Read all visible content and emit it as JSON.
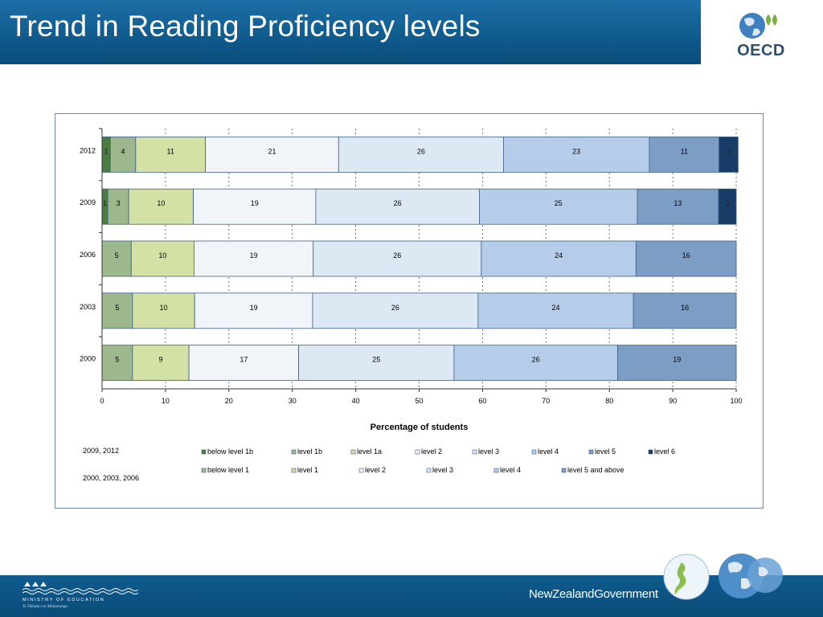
{
  "header": {
    "title": "Trend in Reading Proficiency levels",
    "logo_text": "OECD"
  },
  "footer": {
    "ministry_name": "MINISTRY OF EDUCATION",
    "ministry_tagline": "Te Tāhuhu o te Mātauranga",
    "government_text_1": "NewZealand",
    "government_text_2": "Government"
  },
  "chart_data": {
    "type": "bar",
    "orientation": "horizontal",
    "stacked": true,
    "title": "",
    "xlabel": "Percentage of students",
    "ylabel": "",
    "xlim": [
      0,
      100
    ],
    "x_ticks": [
      "0",
      "10",
      "20",
      "30",
      "40",
      "50",
      "60",
      "70",
      "80",
      "90",
      "100"
    ],
    "grid": "vertical dashed",
    "categories": [
      "2012",
      "2009",
      "2006",
      "2003",
      "2000"
    ],
    "rows": [
      {
        "year": "2012",
        "scheme": "new",
        "values": [
          1.3,
          4,
          11,
          21,
          26,
          23,
          11,
          3
        ],
        "labels": [
          "1",
          "4",
          "11",
          "21",
          "26",
          "23",
          "11",
          "3"
        ]
      },
      {
        "year": "2009",
        "scheme": "new",
        "values": [
          0.9,
          3.3,
          10.2,
          19.3,
          25.8,
          24.9,
          12.8,
          2.8
        ],
        "labels": [
          "1",
          "3",
          "10",
          "19",
          "26",
          "25",
          "13",
          "3"
        ]
      },
      {
        "year": "2006",
        "scheme": "old",
        "values": [
          4.6,
          9.9,
          18.8,
          26.5,
          24.4,
          15.8
        ],
        "labels": [
          "5",
          "10",
          "19",
          "26",
          "24",
          "16"
        ]
      },
      {
        "year": "2003",
        "scheme": "old",
        "values": [
          4.8,
          9.8,
          18.6,
          26.1,
          24.5,
          16.2
        ],
        "labels": [
          "5",
          "10",
          "19",
          "26",
          "24",
          "16"
        ]
      },
      {
        "year": "2000",
        "scheme": "old",
        "values": [
          4.8,
          8.9,
          17.3,
          24.5,
          25.8,
          18.7
        ],
        "labels": [
          "5",
          "9",
          "17",
          "25",
          "26",
          "19"
        ]
      }
    ],
    "legend_new_label": "2009, 2012",
    "legend_new": [
      {
        "name": "below level 1b",
        "color": "#4a7d3f"
      },
      {
        "name": "level 1b",
        "color": "#9db88c"
      },
      {
        "name": "level 1a",
        "color": "#d3e1a5"
      },
      {
        "name": "level 2",
        "color": "#f1f5fa"
      },
      {
        "name": "level 3",
        "color": "#dde8f5"
      },
      {
        "name": "level 4",
        "color": "#b6cde9"
      },
      {
        "name": "level 5",
        "color": "#7d9ec4"
      },
      {
        "name": "level 6",
        "color": "#173d66"
      }
    ],
    "legend_old_label": "2000, 2003, 2006",
    "legend_old": [
      {
        "name": "below level 1",
        "color": "#9db88c"
      },
      {
        "name": "level 1",
        "color": "#d3e1a5"
      },
      {
        "name": "level 2",
        "color": "#f1f5fa"
      },
      {
        "name": "level 3",
        "color": "#dde8f5"
      },
      {
        "name": "level 4",
        "color": "#b6cde9"
      },
      {
        "name": "level 5 and above",
        "color": "#7d9ec4"
      }
    ]
  }
}
